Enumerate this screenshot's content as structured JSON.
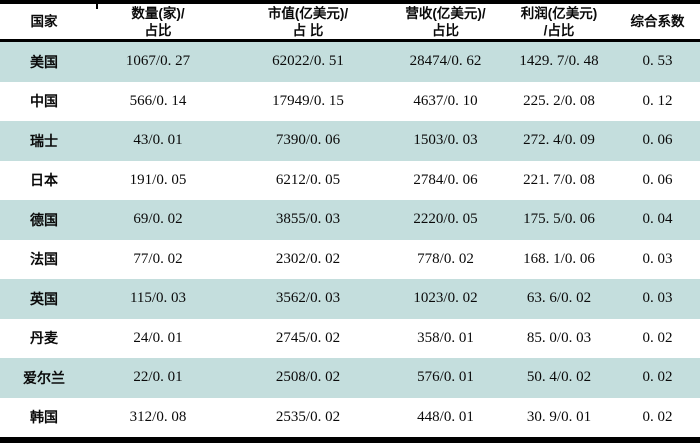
{
  "table": {
    "columns": [
      {
        "label": "国家"
      },
      {
        "line1": "数量(家)/",
        "line2": "占比"
      },
      {
        "line1": "市值(亿美元)/",
        "line2": "占 比"
      },
      {
        "line1": "营收(亿美元)/",
        "line2": "占比"
      },
      {
        "line1": "利润(亿美元)",
        "line2": "/占比"
      },
      {
        "label": "综合系数"
      }
    ],
    "rows": [
      {
        "cells": [
          "美国",
          "1067/0. 27",
          "62022/0. 51",
          "28474/0. 62",
          "1429. 7/0. 48",
          "0. 53"
        ]
      },
      {
        "cells": [
          "中国",
          "566/0. 14",
          "17949/0. 15",
          "4637/0. 10",
          "225. 2/0. 08",
          "0. 12"
        ]
      },
      {
        "cells": [
          "瑞士",
          "43/0. 01",
          "7390/0. 06",
          "1503/0. 03",
          "272. 4/0. 09",
          "0. 06"
        ]
      },
      {
        "cells": [
          "日本",
          "191/0. 05",
          "6212/0. 05",
          "2784/0. 06",
          "221. 7/0. 08",
          "0. 06"
        ]
      },
      {
        "cells": [
          "德国",
          "69/0. 02",
          "3855/0. 03",
          "2220/0. 05",
          "175. 5/0. 06",
          "0. 04"
        ]
      },
      {
        "cells": [
          "法国",
          "77/0. 02",
          "2302/0. 02",
          "778/0. 02",
          "168. 1/0. 06",
          "0. 03"
        ]
      },
      {
        "cells": [
          "英国",
          "115/0. 03",
          "3562/0. 03",
          "1023/0. 02",
          "63. 6/0. 02",
          "0. 03"
        ]
      },
      {
        "cells": [
          "丹麦",
          "24/0. 01",
          "2745/0. 02",
          "358/0. 01",
          "85. 0/0. 03",
          "0. 02"
        ]
      },
      {
        "cells": [
          "爱尔兰",
          "22/0. 01",
          "2508/0. 02",
          "576/0. 01",
          "50. 4/0. 02",
          "0. 02"
        ]
      },
      {
        "cells": [
          "韩国",
          "312/0. 08",
          "2535/0. 02",
          "448/0. 01",
          "30. 9/0. 01",
          "0. 02"
        ]
      }
    ]
  },
  "colors": {
    "stripe": "#c4dedd",
    "border": "#000000",
    "background": "#ffffff",
    "text": "#0a0a0a"
  }
}
